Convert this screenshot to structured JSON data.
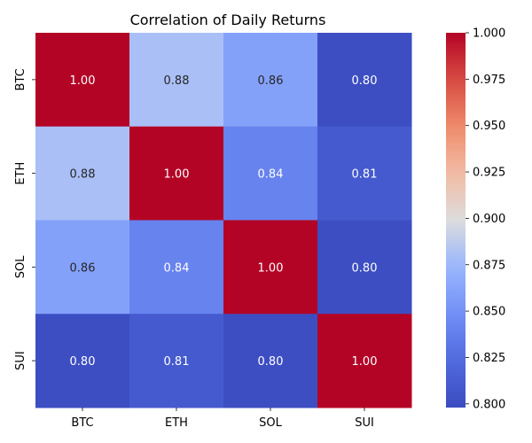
{
  "chart_data": {
    "type": "heatmap",
    "title": "Correlation of Daily Returns",
    "xlabel": "",
    "ylabel": "",
    "x_categories": [
      "BTC",
      "ETH",
      "SOL",
      "SUI"
    ],
    "y_categories": [
      "BTC",
      "ETH",
      "SOL",
      "SUI"
    ],
    "values": [
      [
        1.0,
        0.88,
        0.86,
        0.8
      ],
      [
        0.88,
        1.0,
        0.84,
        0.81
      ],
      [
        0.86,
        0.84,
        1.0,
        0.8
      ],
      [
        0.8,
        0.81,
        0.8,
        1.0
      ]
    ],
    "cell_labels": [
      [
        "1.00",
        "0.88",
        "0.86",
        "0.80"
      ],
      [
        "0.88",
        "1.00",
        "0.84",
        "0.81"
      ],
      [
        "0.86",
        "0.84",
        "1.00",
        "0.80"
      ],
      [
        "0.80",
        "0.81",
        "0.80",
        "1.00"
      ]
    ],
    "colormap": "coolwarm",
    "colorbar": {
      "range": [
        0.798,
        1.0
      ],
      "ticks": [
        1.0,
        0.975,
        0.95,
        0.925,
        0.9,
        0.875,
        0.85,
        0.825,
        0.8
      ],
      "tick_labels": [
        "1.000",
        "0.975",
        "0.950",
        "0.925",
        "0.900",
        "0.875",
        "0.850",
        "0.825",
        "0.800"
      ]
    },
    "grid": false
  }
}
